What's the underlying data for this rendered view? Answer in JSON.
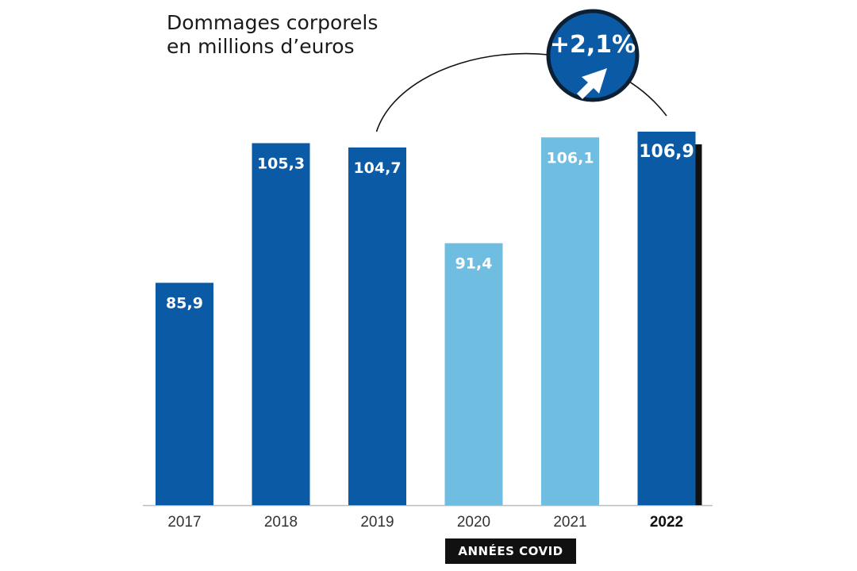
{
  "chart_data": {
    "type": "bar",
    "title_line1": "Dommages corporels",
    "title_line2": "en millions d’euros",
    "categories": [
      "2017",
      "2018",
      "2019",
      "2020",
      "2021",
      "2022"
    ],
    "values": [
      85.9,
      105.3,
      104.7,
      91.4,
      106.1,
      106.9
    ],
    "value_labels": [
      "85,9",
      "105,3",
      "104,7",
      "91,4",
      "106,1",
      "106,9"
    ],
    "ylim": [
      55,
      110
    ],
    "grid": false,
    "legend": "none",
    "highlighted_category": "2022",
    "covid_years": [
      "2020",
      "2021"
    ],
    "covid_label": "ANNÉES COVID",
    "change_badge": "+2,1%",
    "colors": {
      "bar": "#0b5aa6",
      "covid_bar": "#6fbde0",
      "shadow": "#111111",
      "badge": "#0b5aa6",
      "badge_border": "#0d1f33"
    }
  }
}
